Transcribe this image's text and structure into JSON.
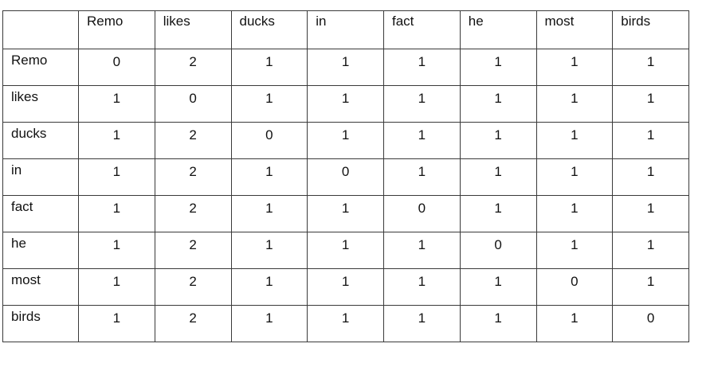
{
  "table": {
    "column_headers": [
      "Remo",
      "likes",
      "ducks",
      "in",
      "fact",
      "he",
      "most",
      "birds"
    ],
    "rows": [
      {
        "label": "Remo",
        "values": [
          "0",
          "2",
          "1",
          "1",
          "1",
          "1",
          "1",
          "1"
        ]
      },
      {
        "label": "likes",
        "values": [
          "1",
          "0",
          "1",
          "1",
          "1",
          "1",
          "1",
          "1"
        ]
      },
      {
        "label": "ducks",
        "values": [
          "1",
          "2",
          "0",
          "1",
          "1",
          "1",
          "1",
          "1"
        ]
      },
      {
        "label": "in",
        "values": [
          "1",
          "2",
          "1",
          "0",
          "1",
          "1",
          "1",
          "1"
        ]
      },
      {
        "label": "fact",
        "values": [
          "1",
          "2",
          "1",
          "1",
          "0",
          "1",
          "1",
          "1"
        ]
      },
      {
        "label": "he",
        "values": [
          "1",
          "2",
          "1",
          "1",
          "1",
          "0",
          "1",
          "1"
        ]
      },
      {
        "label": "most",
        "values": [
          "1",
          "2",
          "1",
          "1",
          "1",
          "1",
          "0",
          "1"
        ]
      },
      {
        "label": "birds",
        "values": [
          "1",
          "2",
          "1",
          "1",
          "1",
          "1",
          "1",
          "0"
        ]
      }
    ]
  }
}
